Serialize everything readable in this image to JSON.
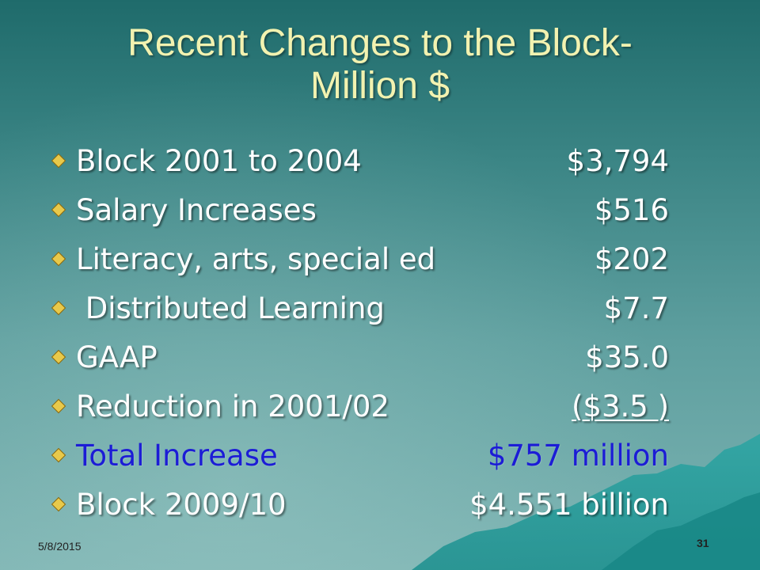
{
  "slide": {
    "title_line1": "Recent Changes to the Block-",
    "title_line2": "Million $",
    "bullets": [
      {
        "label": "Block 2001 to 2004",
        "value": "$3,794"
      },
      {
        "label": "Salary Increases",
        "value": "$516"
      },
      {
        "label": "Literacy, arts, special ed",
        "value": "$202"
      },
      {
        "label": " Distributed Learning",
        "value": "$7.7"
      },
      {
        "label": "GAAP",
        "value": "$35.0"
      },
      {
        "label": "Reduction in 2001/02",
        "value": "($3.5 )"
      },
      {
        "label": "Total Increase",
        "value": "$757 million"
      },
      {
        "label": "Block 2009/10",
        "value": "$4.551 billion"
      }
    ],
    "date": "5/8/2015",
    "slide_number": "31"
  },
  "colors": {
    "title": "#f2f2b0",
    "text": "#ffffff",
    "highlight": "#1c1cd6",
    "bullet": "#e8c94a"
  },
  "icons": {
    "bullet": "diamond-bullet-icon"
  }
}
